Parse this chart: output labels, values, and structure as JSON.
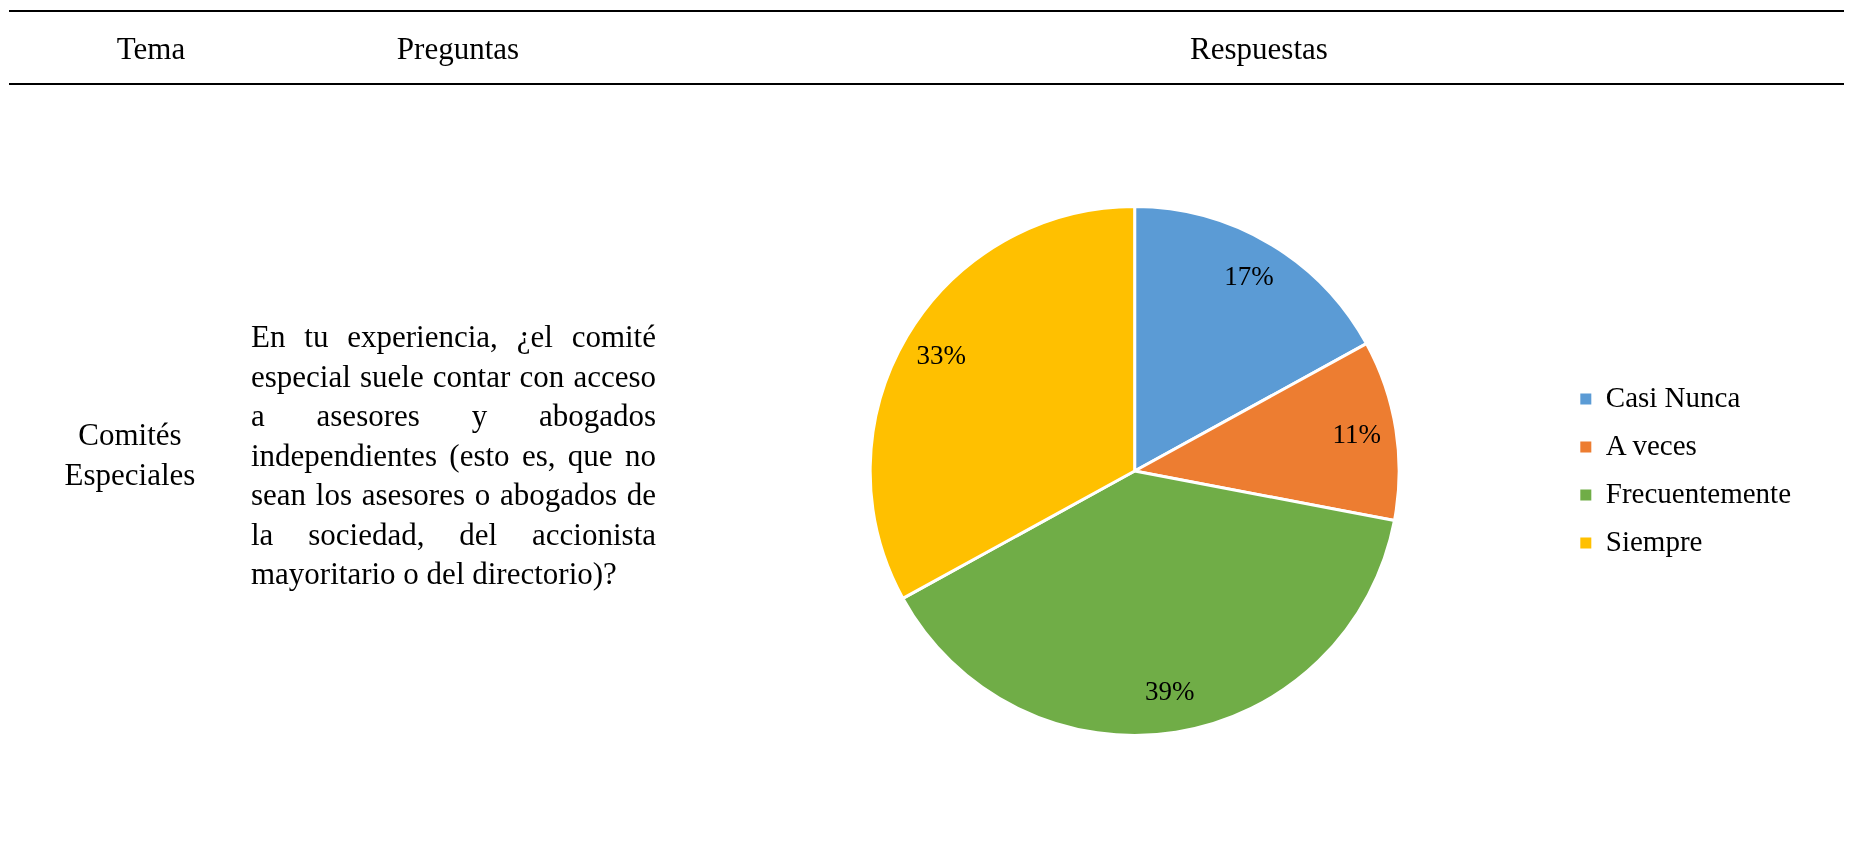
{
  "chart_data": {
    "type": "pie",
    "categories": [
      "Casi Nunca",
      "A veces",
      "Frecuentemente",
      "Siempre"
    ],
    "values": [
      17,
      11,
      39,
      33
    ],
    "colors": [
      "#5b9bd5",
      "#ed7d31",
      "#70ad47",
      "#ffc000"
    ],
    "value_labels": [
      "17%",
      "11%",
      "39%",
      "33%"
    ],
    "legend": "right",
    "annotations": [
      "Tema",
      "Preguntas",
      "Respuestas",
      "Comités Especiales",
      "En tu experiencia, ¿el comité especial suele contar con acceso a asesores y abogados independientes (esto es, que no sean los asesores o abogados de la sociedad, del accionista mayoritario o del directorio)?"
    ]
  }
}
